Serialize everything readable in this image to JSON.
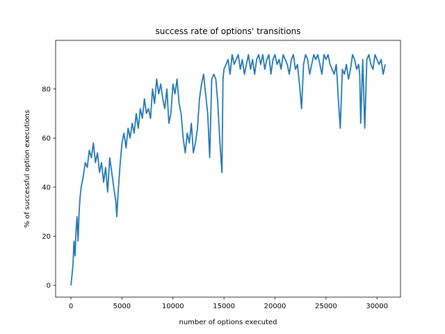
{
  "chart_data": {
    "type": "line",
    "title": "success rate of options' transitions",
    "xlabel": "number of options executed",
    "ylabel": "% of successful option executions",
    "xlim": [
      -1500,
      32300
    ],
    "ylim": [
      -4.8,
      99.8
    ],
    "xticks": [
      0,
      5000,
      10000,
      15000,
      20000,
      25000,
      30000
    ],
    "xtick_labels": [
      "0",
      "5000",
      "10000",
      "15000",
      "20000",
      "25000",
      "30000"
    ],
    "yticks": [
      0,
      20,
      40,
      60,
      80
    ],
    "ytick_labels": [
      "0",
      "20",
      "40",
      "60",
      "80"
    ],
    "grid": false,
    "legend": "none",
    "series": [
      {
        "color": "#1f77b4",
        "x": [
          0,
          100,
          200,
          300,
          400,
          500,
          600,
          700,
          800,
          900,
          1000,
          1200,
          1400,
          1600,
          1800,
          2000,
          2200,
          2400,
          2600,
          2800,
          3000,
          3200,
          3400,
          3600,
          3800,
          4000,
          4200,
          4400,
          4500,
          4600,
          4800,
          5000,
          5200,
          5400,
          5600,
          5800,
          6000,
          6200,
          6400,
          6600,
          6800,
          7000,
          7200,
          7400,
          7600,
          7800,
          8000,
          8200,
          8400,
          8600,
          8800,
          9000,
          9200,
          9400,
          9600,
          9800,
          10000,
          10200,
          10400,
          10600,
          10800,
          11000,
          11200,
          11400,
          11600,
          11800,
          12000,
          12200,
          12400,
          12600,
          12800,
          13000,
          13200,
          13400,
          13600,
          13800,
          14000,
          14200,
          14400,
          14600,
          14800,
          14900,
          15000,
          15200,
          15400,
          15600,
          15800,
          16000,
          16200,
          16400,
          16600,
          16800,
          17000,
          17200,
          17400,
          17600,
          17800,
          18000,
          18200,
          18400,
          18600,
          18800,
          19000,
          19200,
          19400,
          19600,
          19800,
          20000,
          20200,
          20400,
          20600,
          20800,
          21000,
          21200,
          21400,
          21600,
          21800,
          22000,
          22200,
          22400,
          22600,
          22800,
          23000,
          23200,
          23400,
          23600,
          23800,
          24000,
          24200,
          24400,
          24600,
          24800,
          25000,
          25200,
          25400,
          25600,
          25800,
          26000,
          26100,
          26200,
          26400,
          26600,
          26800,
          27000,
          27200,
          27400,
          27600,
          27800,
          28000,
          28200,
          28300,
          28400,
          28600,
          28800,
          29000,
          29200,
          29400,
          29600,
          29800,
          30000,
          30200,
          30400,
          30600,
          30800
        ],
        "y": [
          0,
          4,
          8,
          18,
          12,
          22,
          28,
          18,
          30,
          36,
          40,
          44,
          50,
          48,
          55,
          52,
          58,
          50,
          54,
          46,
          50,
          42,
          48,
          38,
          52,
          46,
          40,
          34,
          28,
          36,
          48,
          58,
          62,
          56,
          64,
          60,
          66,
          62,
          70,
          64,
          72,
          68,
          76,
          70,
          72,
          68,
          80,
          74,
          84,
          78,
          82,
          76,
          72,
          80,
          66,
          70,
          82,
          78,
          84,
          74,
          70,
          60,
          54,
          62,
          58,
          66,
          54,
          58,
          64,
          76,
          82,
          86,
          78,
          70,
          52,
          84,
          86,
          84,
          74,
          58,
          46,
          84,
          88,
          90,
          92,
          86,
          94,
          90,
          92,
          94,
          88,
          92,
          86,
          90,
          94,
          88,
          92,
          86,
          92,
          94,
          90,
          94,
          88,
          92,
          94,
          86,
          92,
          94,
          90,
          92,
          88,
          94,
          92,
          90,
          86,
          92,
          94,
          88,
          90,
          82,
          72,
          90,
          94,
          92,
          86,
          90,
          94,
          92,
          94,
          90,
          86,
          94,
          92,
          94,
          90,
          88,
          86,
          90,
          84,
          76,
          64,
          88,
          86,
          90,
          84,
          88,
          94,
          92,
          88,
          90,
          86,
          66,
          92,
          64,
          92,
          94,
          90,
          88,
          94,
          92,
          90,
          92,
          86,
          90
        ]
      }
    ]
  }
}
